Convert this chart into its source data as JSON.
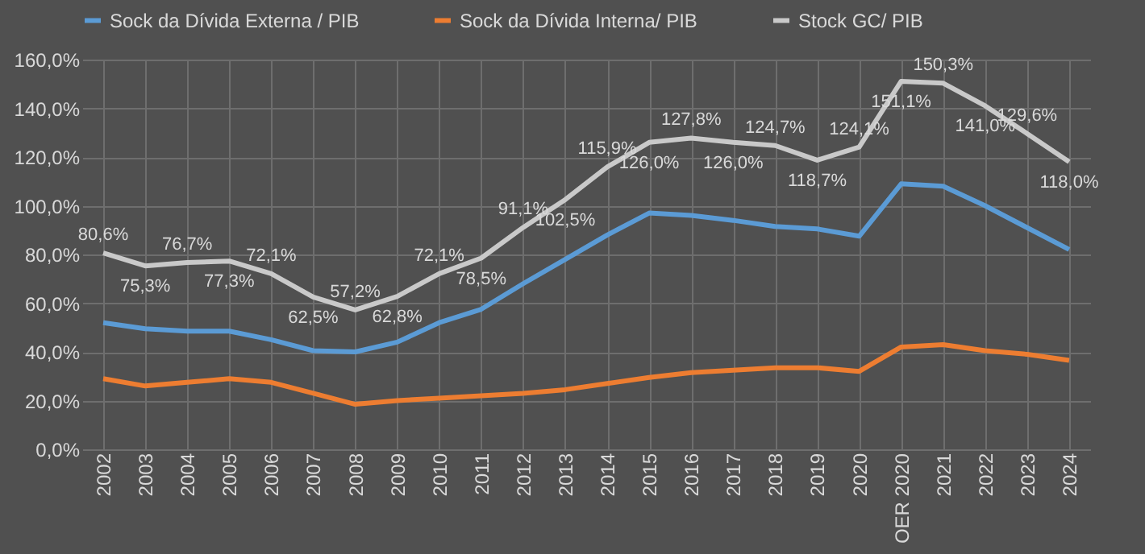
{
  "chart_data": {
    "type": "line",
    "categories": [
      "2002",
      "2003",
      "2004",
      "2005",
      "2006",
      "2007",
      "2008",
      "2009",
      "2010",
      "2011",
      "2012",
      "2013",
      "2014",
      "2015",
      "2016",
      "2017",
      "2018",
      "2019",
      "2020",
      "OER 2020",
      "2021",
      "2022",
      "2023",
      "2024"
    ],
    "series": [
      {
        "name": "Sock da Dívida Externa / PIB",
        "color": "#5b9bd5",
        "values": [
          52,
          49.5,
          48.5,
          48.5,
          45,
          40.5,
          40,
          44,
          52,
          57.5,
          68,
          78,
          88,
          97,
          96,
          94,
          91.5,
          90.5,
          87.5,
          109,
          108,
          100,
          91,
          82
        ]
      },
      {
        "name": "Sock da Dívida Interna/ PIB",
        "color": "#ed7d31",
        "values": [
          29,
          26,
          27.5,
          29,
          27.5,
          23,
          18.5,
          20,
          21,
          22,
          23,
          24.5,
          27,
          29.5,
          31.5,
          32.5,
          33.5,
          33.5,
          32,
          42,
          43,
          40.5,
          39,
          36.5
        ]
      },
      {
        "name": "Stock GC/ PIB",
        "color": "#c9c9c9",
        "values": [
          80.6,
          75.3,
          76.7,
          77.3,
          72.1,
          62.5,
          57.2,
          62.8,
          72.1,
          78.5,
          91.1,
          102.5,
          115.9,
          126.0,
          127.8,
          126.0,
          124.7,
          118.7,
          124.1,
          151.1,
          150.3,
          141.0,
          129.6,
          118.0
        ],
        "value_labels": [
          "80,6%",
          "75,3%",
          "76,7%",
          "77,3%",
          "72,1%",
          "62,5%",
          "57,2%",
          "62,8%",
          "72,1%",
          "78,5%",
          "91,1%",
          "102,5%",
          "115,9%",
          "126,0%",
          "127,8%",
          "126,0%",
          "124,7%",
          "118,7%",
          "124,1%",
          "151,1%",
          "150,3%",
          "141,0%",
          "129,6%",
          "118,0%"
        ]
      }
    ],
    "ylim": [
      0,
      160
    ],
    "yticks": [
      {
        "value": 0,
        "label": "0,0%"
      },
      {
        "value": 20,
        "label": "20,0%"
      },
      {
        "value": 40,
        "label": "40,0%"
      },
      {
        "value": 60,
        "label": "60,0%"
      },
      {
        "value": 80,
        "label": "80,0%"
      },
      {
        "value": 100,
        "label": "100,0%"
      },
      {
        "value": 120,
        "label": "120,0%"
      },
      {
        "value": 140,
        "label": "140,0%"
      },
      {
        "value": 160,
        "label": "160,0%"
      }
    ],
    "grid": true,
    "legend": "top",
    "marker": "none",
    "line_style": "solid"
  }
}
